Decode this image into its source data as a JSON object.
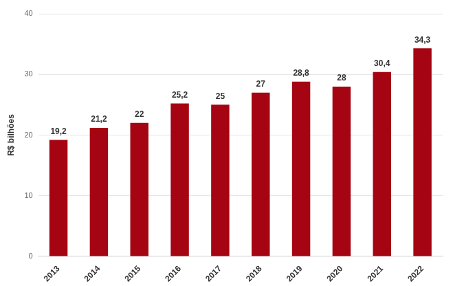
{
  "chart_data": {
    "type": "bar",
    "ylabel": "R$ bilhões",
    "categories": [
      "2013",
      "2014",
      "2015",
      "2016",
      "2017",
      "2018",
      "2019",
      "2020",
      "2021",
      "2022"
    ],
    "values": [
      19.2,
      21.2,
      22,
      25.2,
      25,
      27,
      28.8,
      28,
      30.4,
      34.3
    ],
    "value_labels": [
      "19,2",
      "21,2",
      "22",
      "25,2",
      "25",
      "27",
      "28,8",
      "28",
      "30,4",
      "34,3"
    ],
    "color": "#a50512",
    "ylim": [
      0,
      40
    ],
    "yticks": [
      0,
      10,
      20,
      30,
      40
    ],
    "grid": true,
    "data_labels": true
  }
}
